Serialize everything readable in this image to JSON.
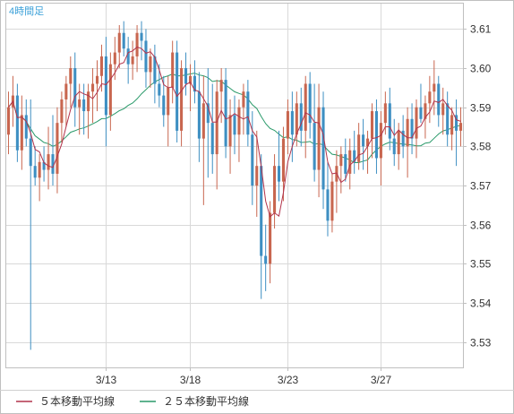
{
  "timeframe_label": "4時間足",
  "colors": {
    "up": "#c8664f",
    "down": "#3e8fc2",
    "ma5": "#b2334b",
    "ma25": "#2a9a6a",
    "grid": "#d9d9d9",
    "border": "#bfbfbf"
  },
  "legend": [
    {
      "key": "ma5",
      "label": "５本移動平均線"
    },
    {
      "key": "ma25",
      "label": "２５本移動平均線"
    }
  ],
  "chart_data": {
    "type": "candlestick",
    "y_ticks": [
      "3.53",
      "3.54",
      "3.55",
      "3.56",
      "3.57",
      "3.58",
      "3.59",
      "3.60",
      "3.61"
    ],
    "x_ticks": [
      {
        "label": "3/13",
        "index": 22
      },
      {
        "label": "3/18",
        "index": 41
      },
      {
        "label": "3/23",
        "index": 63
      },
      {
        "label": "3/27",
        "index": 84
      }
    ],
    "ylim": [
      3.5235,
      3.6165
    ],
    "grid": true,
    "legend_position": "bottom-left",
    "candles": [
      [
        3.583,
        3.594,
        3.578,
        3.59
      ],
      [
        3.59,
        3.598,
        3.585,
        3.593
      ],
      [
        3.593,
        3.596,
        3.576,
        3.579
      ],
      [
        3.579,
        3.593,
        3.574,
        3.588
      ],
      [
        3.588,
        3.592,
        3.58,
        3.582
      ],
      [
        3.582,
        3.592,
        3.528,
        3.575
      ],
      [
        3.575,
        3.58,
        3.57,
        3.572
      ],
      [
        3.572,
        3.578,
        3.566,
        3.576
      ],
      [
        3.576,
        3.58,
        3.571,
        3.574
      ],
      [
        3.574,
        3.585,
        3.569,
        3.578
      ],
      [
        3.578,
        3.588,
        3.57,
        3.573
      ],
      [
        3.573,
        3.59,
        3.568,
        3.586
      ],
      [
        3.586,
        3.594,
        3.581,
        3.592
      ],
      [
        3.592,
        3.598,
        3.585,
        3.596
      ],
      [
        3.596,
        3.603,
        3.59,
        3.6
      ],
      [
        3.6,
        3.604,
        3.585,
        3.59
      ],
      [
        3.59,
        3.596,
        3.583,
        3.592
      ],
      [
        3.592,
        3.596,
        3.583,
        3.589
      ],
      [
        3.589,
        3.596,
        3.582,
        3.594
      ],
      [
        3.594,
        3.6,
        3.586,
        3.596
      ],
      [
        3.596,
        3.602,
        3.589,
        3.598
      ],
      [
        3.598,
        3.606,
        3.594,
        3.603
      ],
      [
        3.603,
        3.608,
        3.58,
        3.588
      ],
      [
        3.588,
        3.604,
        3.584,
        3.601
      ],
      [
        3.601,
        3.608,
        3.597,
        3.604
      ],
      [
        3.604,
        3.611,
        3.6,
        3.609
      ],
      [
        3.609,
        3.612,
        3.603,
        3.605
      ],
      [
        3.605,
        3.608,
        3.596,
        3.601
      ],
      [
        3.601,
        3.607,
        3.597,
        3.603
      ],
      [
        3.603,
        3.611,
        3.599,
        3.609
      ],
      [
        3.609,
        3.612,
        3.602,
        3.607
      ],
      [
        3.607,
        3.61,
        3.595,
        3.599
      ],
      [
        3.599,
        3.605,
        3.595,
        3.603
      ],
      [
        3.603,
        3.606,
        3.591,
        3.596
      ],
      [
        3.596,
        3.601,
        3.59,
        3.593
      ],
      [
        3.593,
        3.598,
        3.585,
        3.588
      ],
      [
        3.588,
        3.598,
        3.58,
        3.595
      ],
      [
        3.595,
        3.607,
        3.591,
        3.604
      ],
      [
        3.604,
        3.607,
        3.581,
        3.584
      ],
      [
        3.584,
        3.602,
        3.58,
        3.6
      ],
      [
        3.6,
        3.604,
        3.593,
        3.596
      ],
      [
        3.596,
        3.601,
        3.589,
        3.598
      ],
      [
        3.598,
        3.602,
        3.591,
        3.594
      ],
      [
        3.594,
        3.599,
        3.576,
        3.582
      ],
      [
        3.582,
        3.598,
        3.565,
        3.591
      ],
      [
        3.591,
        3.6,
        3.572,
        3.586
      ],
      [
        3.586,
        3.596,
        3.573,
        3.578
      ],
      [
        3.578,
        3.597,
        3.569,
        3.594
      ],
      [
        3.594,
        3.6,
        3.586,
        3.597
      ],
      [
        3.597,
        3.6,
        3.577,
        3.58
      ],
      [
        3.58,
        3.592,
        3.573,
        3.588
      ],
      [
        3.588,
        3.593,
        3.578,
        3.583
      ],
      [
        3.583,
        3.592,
        3.576,
        3.59
      ],
      [
        3.59,
        3.596,
        3.583,
        3.594
      ],
      [
        3.594,
        3.597,
        3.58,
        3.583
      ],
      [
        3.583,
        3.589,
        3.565,
        3.57
      ],
      [
        3.57,
        3.584,
        3.562,
        3.575
      ],
      [
        3.575,
        3.578,
        3.541,
        3.552
      ],
      [
        3.552,
        3.56,
        3.543,
        3.55
      ],
      [
        3.55,
        3.566,
        3.545,
        3.563
      ],
      [
        3.563,
        3.578,
        3.559,
        3.575
      ],
      [
        3.575,
        3.584,
        3.566,
        3.571
      ],
      [
        3.571,
        3.585,
        3.566,
        3.582
      ],
      [
        3.582,
        3.592,
        3.578,
        3.589
      ],
      [
        3.589,
        3.594,
        3.576,
        3.583
      ],
      [
        3.583,
        3.594,
        3.58,
        3.591
      ],
      [
        3.591,
        3.595,
        3.58,
        3.584
      ],
      [
        3.584,
        3.598,
        3.577,
        3.596
      ],
      [
        3.596,
        3.599,
        3.582,
        3.586
      ],
      [
        3.586,
        3.596,
        3.571,
        3.574
      ],
      [
        3.574,
        3.596,
        3.567,
        3.59
      ],
      [
        3.59,
        3.594,
        3.564,
        3.569
      ],
      [
        3.569,
        3.576,
        3.557,
        3.561
      ],
      [
        3.561,
        3.573,
        3.558,
        3.571
      ],
      [
        3.571,
        3.579,
        3.563,
        3.575
      ],
      [
        3.575,
        3.58,
        3.568,
        3.578
      ],
      [
        3.578,
        3.582,
        3.571,
        3.573
      ],
      [
        3.573,
        3.582,
        3.569,
        3.579
      ],
      [
        3.579,
        3.584,
        3.573,
        3.576
      ],
      [
        3.576,
        3.586,
        3.574,
        3.583
      ],
      [
        3.583,
        3.587,
        3.574,
        3.58
      ],
      [
        3.58,
        3.584,
        3.573,
        3.582
      ],
      [
        3.582,
        3.591,
        3.577,
        3.589
      ],
      [
        3.589,
        3.592,
        3.573,
        3.577
      ],
      [
        3.577,
        3.589,
        3.57,
        3.586
      ],
      [
        3.586,
        3.594,
        3.583,
        3.591
      ],
      [
        3.591,
        3.595,
        3.579,
        3.582
      ],
      [
        3.582,
        3.587,
        3.575,
        3.578
      ],
      [
        3.578,
        3.586,
        3.574,
        3.584
      ],
      [
        3.584,
        3.588,
        3.577,
        3.58
      ],
      [
        3.58,
        3.59,
        3.572,
        3.587
      ],
      [
        3.587,
        3.591,
        3.578,
        3.582
      ],
      [
        3.582,
        3.592,
        3.577,
        3.59
      ],
      [
        3.59,
        3.596,
        3.586,
        3.587
      ],
      [
        3.587,
        3.593,
        3.582,
        3.591
      ],
      [
        3.591,
        3.598,
        3.586,
        3.594
      ],
      [
        3.594,
        3.602,
        3.588,
        3.596
      ],
      [
        3.596,
        3.598,
        3.585,
        3.588
      ],
      [
        3.588,
        3.595,
        3.583,
        3.591
      ],
      [
        3.591,
        3.594,
        3.58,
        3.583
      ],
      [
        3.583,
        3.59,
        3.579,
        3.588
      ],
      [
        3.588,
        3.592,
        3.575,
        3.584
      ],
      [
        3.584,
        3.59,
        3.58,
        3.586
      ]
    ]
  }
}
